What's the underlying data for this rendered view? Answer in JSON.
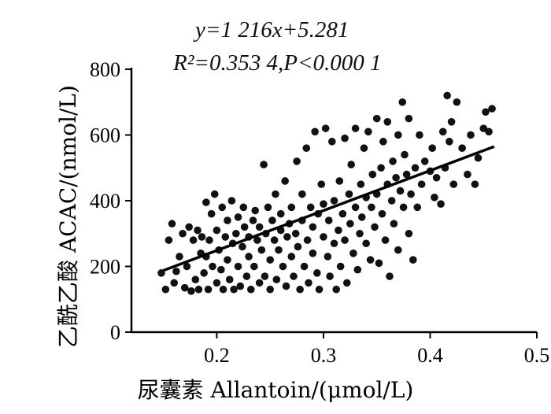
{
  "equation_line": "y=1 216x+5.281",
  "stats_line": "R²=0.353 4,P<0.000 1",
  "chart_data": {
    "type": "scatter",
    "xlabel": "尿囊素  Allantoin/(μmol/L)",
    "ylabel": "乙酰乙酸  ACAC/(nmol/L)",
    "xlim": [
      0.12,
      0.5
    ],
    "ylim": [
      0,
      800
    ],
    "xticks": [
      "0.2",
      "0.3",
      "0.4",
      "0.5"
    ],
    "yticks": [
      "0",
      "200",
      "400",
      "600",
      "800"
    ],
    "grid": false,
    "fit_line": {
      "slope": 1216,
      "intercept": 5.281,
      "x_range": [
        0.15,
        0.46
      ]
    },
    "points": [
      [
        0.148,
        180
      ],
      [
        0.152,
        130
      ],
      [
        0.155,
        280
      ],
      [
        0.158,
        330
      ],
      [
        0.16,
        150
      ],
      [
        0.162,
        185
      ],
      [
        0.165,
        230
      ],
      [
        0.168,
        300
      ],
      [
        0.17,
        135
      ],
      [
        0.172,
        200
      ],
      [
        0.174,
        320
      ],
      [
        0.176,
        125
      ],
      [
        0.178,
        280
      ],
      [
        0.18,
        160
      ],
      [
        0.182,
        310
      ],
      [
        0.183,
        130
      ],
      [
        0.185,
        240
      ],
      [
        0.186,
        290
      ],
      [
        0.188,
        180
      ],
      [
        0.19,
        395
      ],
      [
        0.19,
        230
      ],
      [
        0.192,
        130
      ],
      [
        0.193,
        280
      ],
      [
        0.195,
        360
      ],
      [
        0.196,
        200
      ],
      [
        0.198,
        420
      ],
      [
        0.2,
        150
      ],
      [
        0.2,
        310
      ],
      [
        0.202,
        250
      ],
      [
        0.204,
        190
      ],
      [
        0.205,
        380
      ],
      [
        0.206,
        130
      ],
      [
        0.208,
        290
      ],
      [
        0.21,
        340
      ],
      [
        0.21,
        220
      ],
      [
        0.212,
        160
      ],
      [
        0.214,
        400
      ],
      [
        0.215,
        270
      ],
      [
        0.216,
        130
      ],
      [
        0.218,
        300
      ],
      [
        0.22,
        350
      ],
      [
        0.22,
        200
      ],
      [
        0.222,
        140
      ],
      [
        0.224,
        260
      ],
      [
        0.225,
        380
      ],
      [
        0.226,
        320
      ],
      [
        0.228,
        170
      ],
      [
        0.23,
        290
      ],
      [
        0.23,
        230
      ],
      [
        0.232,
        130
      ],
      [
        0.234,
        340
      ],
      [
        0.235,
        200
      ],
      [
        0.236,
        370
      ],
      [
        0.238,
        280
      ],
      [
        0.24,
        150
      ],
      [
        0.24,
        320
      ],
      [
        0.242,
        250
      ],
      [
        0.244,
        510
      ],
      [
        0.245,
        170
      ],
      [
        0.246,
        300
      ],
      [
        0.248,
        380
      ],
      [
        0.25,
        220
      ],
      [
        0.25,
        130
      ],
      [
        0.252,
        340
      ],
      [
        0.254,
        280
      ],
      [
        0.255,
        420
      ],
      [
        0.256,
        160
      ],
      [
        0.258,
        250
      ],
      [
        0.26,
        360
      ],
      [
        0.26,
        310
      ],
      [
        0.262,
        200
      ],
      [
        0.264,
        460
      ],
      [
        0.265,
        140
      ],
      [
        0.266,
        290
      ],
      [
        0.268,
        330
      ],
      [
        0.27,
        380
      ],
      [
        0.27,
        230
      ],
      [
        0.272,
        170
      ],
      [
        0.274,
        300
      ],
      [
        0.275,
        520
      ],
      [
        0.276,
        260
      ],
      [
        0.278,
        130
      ],
      [
        0.28,
        420
      ],
      [
        0.28,
        340
      ],
      [
        0.282,
        200
      ],
      [
        0.284,
        560
      ],
      [
        0.285,
        280
      ],
      [
        0.286,
        150
      ],
      [
        0.288,
        380
      ],
      [
        0.29,
        320
      ],
      [
        0.29,
        240
      ],
      [
        0.292,
        610
      ],
      [
        0.294,
        180
      ],
      [
        0.295,
        360
      ],
      [
        0.296,
        130
      ],
      [
        0.298,
        450
      ],
      [
        0.3,
        290
      ],
      [
        0.3,
        390
      ],
      [
        0.302,
        620
      ],
      [
        0.304,
        230
      ],
      [
        0.305,
        340
      ],
      [
        0.306,
        170
      ],
      [
        0.308,
        580
      ],
      [
        0.31,
        400
      ],
      [
        0.31,
        270
      ],
      [
        0.312,
        130
      ],
      [
        0.314,
        310
      ],
      [
        0.315,
        460
      ],
      [
        0.316,
        200
      ],
      [
        0.318,
        360
      ],
      [
        0.32,
        590
      ],
      [
        0.32,
        280
      ],
      [
        0.322,
        150
      ],
      [
        0.324,
        420
      ],
      [
        0.325,
        330
      ],
      [
        0.326,
        510
      ],
      [
        0.328,
        240
      ],
      [
        0.33,
        380
      ],
      [
        0.33,
        620
      ],
      [
        0.332,
        190
      ],
      [
        0.334,
        300
      ],
      [
        0.335,
        450
      ],
      [
        0.336,
        350
      ],
      [
        0.338,
        560
      ],
      [
        0.34,
        270
      ],
      [
        0.34,
        410
      ],
      [
        0.342,
        610
      ],
      [
        0.344,
        220
      ],
      [
        0.345,
        380
      ],
      [
        0.346,
        480
      ],
      [
        0.348,
        320
      ],
      [
        0.35,
        650
      ],
      [
        0.35,
        420
      ],
      [
        0.352,
        210
      ],
      [
        0.354,
        500
      ],
      [
        0.355,
        360
      ],
      [
        0.356,
        580
      ],
      [
        0.358,
        280
      ],
      [
        0.36,
        450
      ],
      [
        0.36,
        640
      ],
      [
        0.362,
        170
      ],
      [
        0.364,
        400
      ],
      [
        0.365,
        520
      ],
      [
        0.366,
        330
      ],
      [
        0.368,
        470
      ],
      [
        0.37,
        600
      ],
      [
        0.37,
        250
      ],
      [
        0.372,
        430
      ],
      [
        0.374,
        700
      ],
      [
        0.375,
        380
      ],
      [
        0.376,
        540
      ],
      [
        0.378,
        480
      ],
      [
        0.38,
        650
      ],
      [
        0.38,
        300
      ],
      [
        0.382,
        420
      ],
      [
        0.384,
        220
      ],
      [
        0.386,
        500
      ],
      [
        0.388,
        380
      ],
      [
        0.39,
        600
      ],
      [
        0.392,
        450
      ],
      [
        0.395,
        520
      ],
      [
        0.4,
        490
      ],
      [
        0.402,
        560
      ],
      [
        0.404,
        410
      ],
      [
        0.406,
        470
      ],
      [
        0.41,
        390
      ],
      [
        0.412,
        610
      ],
      [
        0.414,
        500
      ],
      [
        0.416,
        720
      ],
      [
        0.418,
        580
      ],
      [
        0.42,
        640
      ],
      [
        0.422,
        450
      ],
      [
        0.425,
        700
      ],
      [
        0.43,
        560
      ],
      [
        0.435,
        480
      ],
      [
        0.438,
        600
      ],
      [
        0.442,
        450
      ],
      [
        0.445,
        530
      ],
      [
        0.45,
        620
      ],
      [
        0.452,
        670
      ],
      [
        0.455,
        610
      ],
      [
        0.458,
        680
      ]
    ]
  }
}
